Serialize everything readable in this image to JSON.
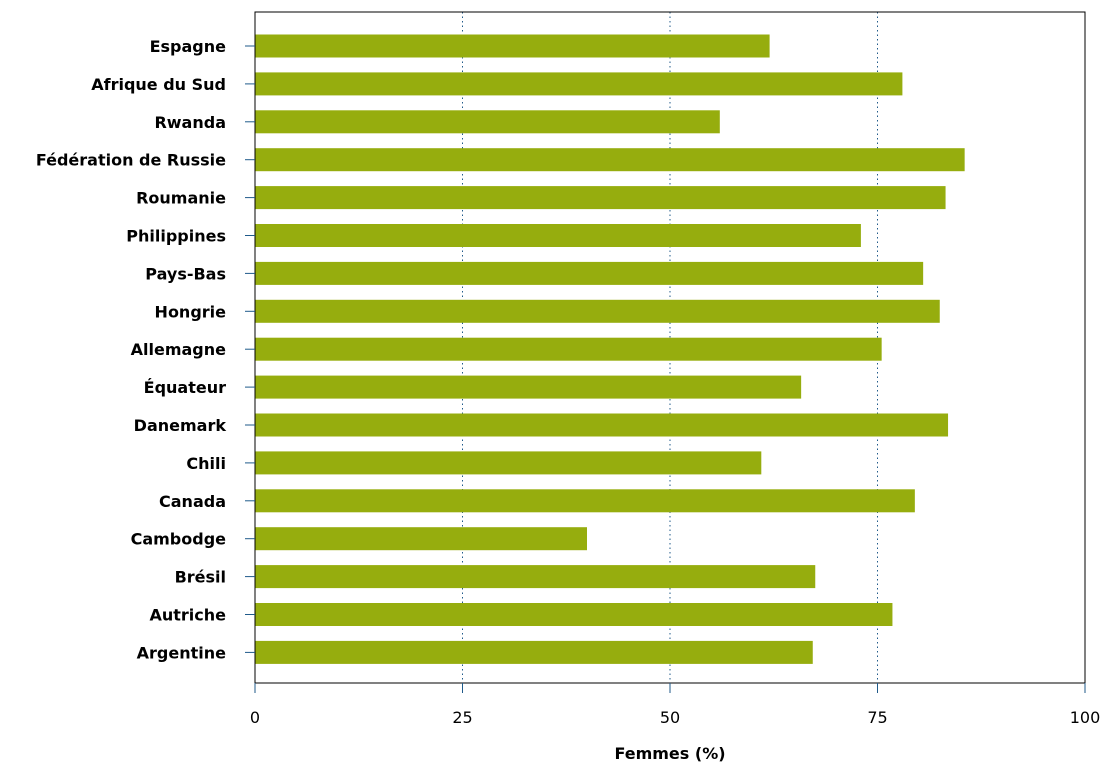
{
  "chart_data": {
    "type": "bar",
    "orientation": "horizontal",
    "categories": [
      "Espagne",
      "Afrique du Sud",
      "Rwanda",
      "Fédération de Russie",
      "Roumanie",
      "Philippines",
      "Pays-Bas",
      "Hongrie",
      "Allemagne",
      "Équateur",
      "Danemark",
      "Chili",
      "Canada",
      "Cambodge",
      "Brésil",
      "Autriche",
      "Argentine"
    ],
    "values": [
      62.0,
      78.0,
      56.0,
      85.5,
      83.2,
      73.0,
      80.5,
      82.5,
      75.5,
      65.8,
      83.5,
      61.0,
      79.5,
      40.0,
      67.5,
      76.8,
      67.2
    ],
    "xlabel": "Femmes (%)",
    "xlim": [
      0,
      100
    ],
    "xticks": [
      0,
      25,
      50,
      75,
      100
    ],
    "xtick_labels": [
      "0",
      "25",
      "50",
      "75",
      "100"
    ],
    "gridlines_x": [
      25,
      50,
      75
    ],
    "grid": "dotted vertical",
    "bar_color": "#96ad0e",
    "axis_color": "#1f5a8a"
  }
}
